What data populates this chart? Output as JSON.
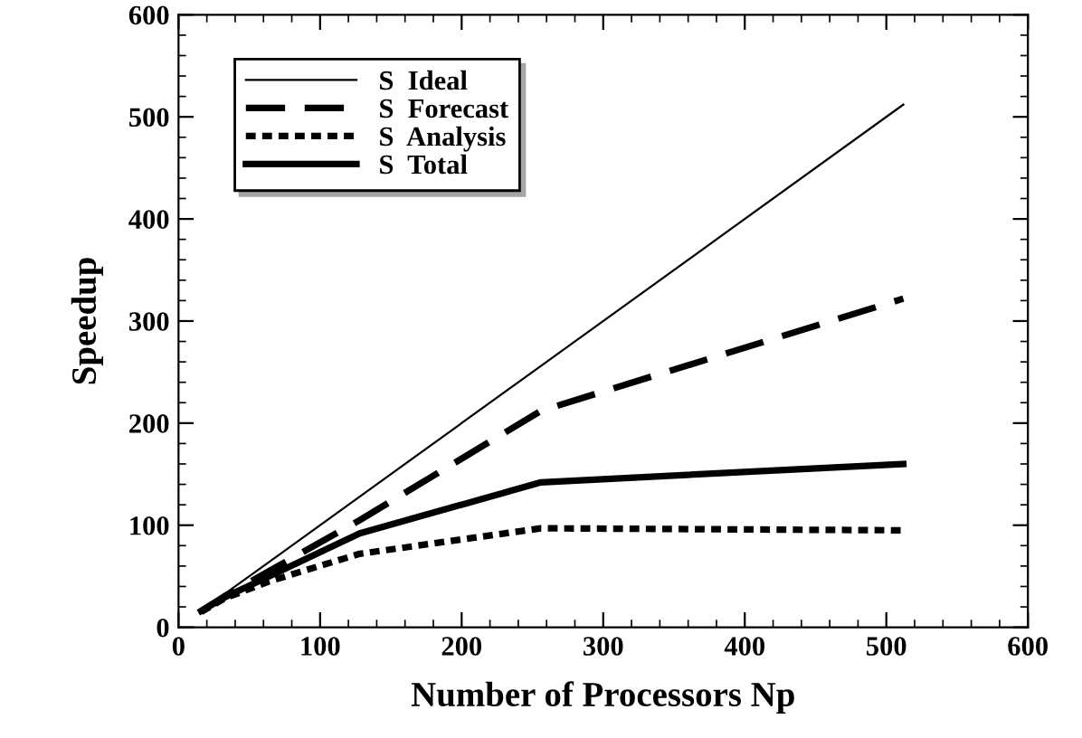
{
  "chart_data": {
    "type": "line",
    "xlabel": "Number of Processors Np",
    "ylabel": "Speedup",
    "x": [
      16,
      32,
      64,
      128,
      256,
      512
    ],
    "series": [
      {
        "name": "S  Ideal",
        "color": "#000000",
        "line_style": "solid",
        "values": [
          16,
          32,
          64,
          128,
          256,
          512
        ]
      },
      {
        "name": "S  Forecast",
        "color": "#000000",
        "line_style": "dashed",
        "values": [
          16,
          30,
          55,
          105,
          212,
          322
        ]
      },
      {
        "name": "S  Analysis",
        "color": "#000000",
        "line_style": "dotted",
        "values": [
          15,
          28,
          45,
          72,
          97,
          95
        ]
      },
      {
        "name": "S  Total",
        "color": "#000000",
        "line_style": "solid",
        "values": [
          16,
          29,
          50,
          92,
          142,
          160
        ]
      }
    ],
    "xlim": [
      0,
      600
    ],
    "xticks": [
      0,
      100,
      200,
      300,
      400,
      500,
      600
    ],
    "ylim": [
      0,
      600
    ],
    "yticks": [
      0,
      100,
      200,
      300,
      400,
      500,
      600
    ],
    "grid": false,
    "legend": "top left",
    "marker": "none"
  }
}
